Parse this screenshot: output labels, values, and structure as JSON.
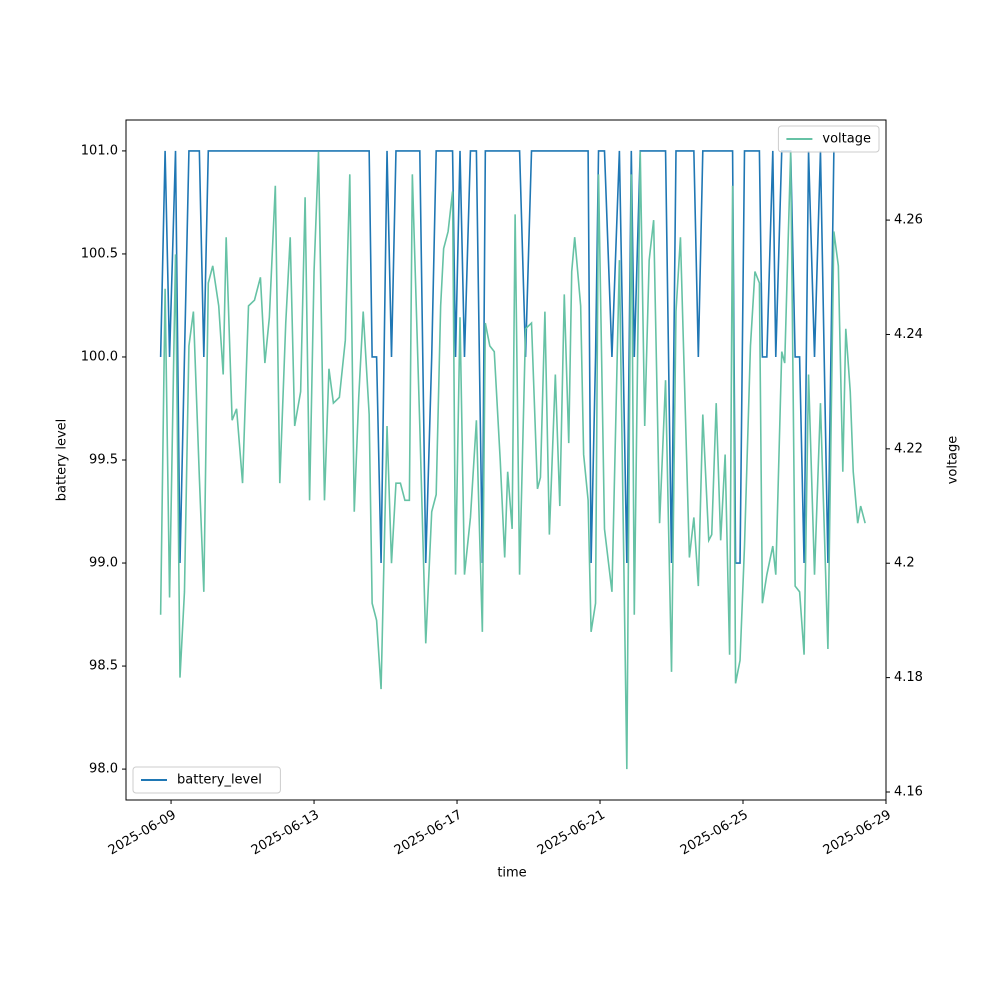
{
  "chart_data": {
    "type": "line",
    "xlabel": "time",
    "ylabel": "battery level",
    "y2label": "voltage",
    "x": [
      "2025-06-08T17:00",
      "2025-06-08T20:00",
      "2025-06-08T23:00",
      "2025-06-09T03:00",
      "2025-06-09T06:00",
      "2025-06-09T09:00",
      "2025-06-09T12:00",
      "2025-06-09T15:00",
      "2025-06-09T19:00",
      "2025-06-09T22:00",
      "2025-06-10T01:00",
      "2025-06-10T04:00",
      "2025-06-10T08:00",
      "2025-06-10T11:00",
      "2025-06-10T13:00",
      "2025-06-10T17:00",
      "2025-06-10T20:00",
      "2025-06-11T00:00",
      "2025-06-11T04:00",
      "2025-06-11T08:00",
      "2025-06-11T12:00",
      "2025-06-11T15:00",
      "2025-06-11T18:00",
      "2025-06-11T22:00",
      "2025-06-12T01:00",
      "2025-06-12T05:00",
      "2025-06-12T08:00",
      "2025-06-12T11:00",
      "2025-06-12T15:00",
      "2025-06-12T18:00",
      "2025-06-12T21:00",
      "2025-06-13T00:00",
      "2025-06-13T03:00",
      "2025-06-13T07:00",
      "2025-06-13T10:00",
      "2025-06-13T13:00",
      "2025-06-13T17:00",
      "2025-06-13T21:00",
      "2025-06-14T00:00",
      "2025-06-14T03:00",
      "2025-06-14T06:00",
      "2025-06-14T09:00",
      "2025-06-14T13:00",
      "2025-06-14T15:00",
      "2025-06-14T18:00",
      "2025-06-14T21:00",
      "2025-06-15T01:00",
      "2025-06-15T04:00",
      "2025-06-15T07:00",
      "2025-06-15T10:00",
      "2025-06-15T13:00",
      "2025-06-15T16:00",
      "2025-06-15T18:00",
      "2025-06-15T23:00",
      "2025-06-16T03:00",
      "2025-06-16T07:00",
      "2025-06-16T10:00",
      "2025-06-16T13:00",
      "2025-06-16T15:00",
      "2025-06-16T18:00",
      "2025-06-16T21:00",
      "2025-06-16T23:00",
      "2025-06-17T02:00",
      "2025-06-17T05:00",
      "2025-06-17T09:00",
      "2025-06-17T13:00",
      "2025-06-17T17:00",
      "2025-06-17T19:00",
      "2025-06-17T22:00",
      "2025-06-18T01:00",
      "2025-06-18T05:00",
      "2025-06-18T08:00",
      "2025-06-18T10:00",
      "2025-06-18T13:00",
      "2025-06-18T15:00",
      "2025-06-18T18:00",
      "2025-06-18T22:00",
      "2025-06-19T02:00",
      "2025-06-19T06:00",
      "2025-06-19T08:00",
      "2025-06-19T11:00",
      "2025-06-19T14:00",
      "2025-06-19T18:00",
      "2025-06-19T21:00",
      "2025-06-20T00:00",
      "2025-06-20T03:00",
      "2025-06-20T05:00",
      "2025-06-20T07:00",
      "2025-06-20T11:00",
      "2025-06-20T13:00",
      "2025-06-20T16:00",
      "2025-06-20T18:00",
      "2025-06-20T21:00",
      "2025-06-20T23:00",
      "2025-06-21T03:00",
      "2025-06-21T08:00",
      "2025-06-21T13:00",
      "2025-06-21T18:00",
      "2025-06-21T21:00",
      "2025-06-21T23:00",
      "2025-06-22T03:00",
      "2025-06-22T06:00",
      "2025-06-22T09:00",
      "2025-06-22T12:00",
      "2025-06-22T16:00",
      "2025-06-22T20:00",
      "2025-06-23T00:00",
      "2025-06-23T03:00",
      "2025-06-23T06:00",
      "2025-06-23T12:00",
      "2025-06-23T15:00",
      "2025-06-23T18:00",
      "2025-06-23T21:00",
      "2025-06-24T01:00",
      "2025-06-24T03:00",
      "2025-06-24T06:00",
      "2025-06-24T09:00",
      "2025-06-24T12:00",
      "2025-06-24T15:00",
      "2025-06-24T17:00",
      "2025-06-24T19:00",
      "2025-06-24T22:00",
      "2025-06-25T01:00",
      "2025-06-25T05:00",
      "2025-06-25T08:00",
      "2025-06-25T11:00",
      "2025-06-25T13:00",
      "2025-06-25T16:00",
      "2025-06-25T20:00",
      "2025-06-25T22:00",
      "2025-06-26T02:00",
      "2025-06-26T04:00",
      "2025-06-26T08:00",
      "2025-06-26T11:00",
      "2025-06-26T14:00",
      "2025-06-26T17:00",
      "2025-06-26T20:00",
      "2025-06-27T00:00",
      "2025-06-27T04:00",
      "2025-06-27T09:00",
      "2025-06-27T13:00",
      "2025-06-27T16:00",
      "2025-06-27T19:00",
      "2025-06-27T21:00",
      "2025-06-28T00:00",
      "2025-06-28T02:00",
      "2025-06-28T05:00",
      "2025-06-28T07:00",
      "2025-06-28T10:00"
    ],
    "series": [
      {
        "name": "battery_level",
        "color": "#1f77b4",
        "axis": "y",
        "legend": "lower left",
        "values": [
          100,
          101,
          100,
          101,
          99,
          100,
          101,
          101,
          101,
          100,
          101,
          101,
          101,
          101,
          101,
          101,
          101,
          101,
          101,
          101,
          101,
          101,
          101,
          101,
          101,
          101,
          101,
          101,
          101,
          101,
          101,
          101,
          101,
          101,
          101,
          101,
          101,
          101,
          101,
          101,
          101,
          101,
          101,
          100,
          100,
          99,
          101,
          100,
          101,
          101,
          101,
          101,
          101,
          101,
          99,
          100,
          101,
          101,
          101,
          101,
          101,
          100,
          101,
          100,
          101,
          101,
          99,
          101,
          101,
          101,
          101,
          101,
          101,
          101,
          101,
          101,
          100,
          101,
          101,
          101,
          101,
          101,
          101,
          101,
          101,
          101,
          101,
          101,
          101,
          101,
          101,
          99,
          100,
          101,
          101,
          100,
          101,
          99,
          101,
          100,
          101,
          101,
          101,
          101,
          101,
          101,
          99,
          101,
          101,
          101,
          101,
          100,
          101,
          101,
          101,
          101,
          101,
          101,
          101,
          101,
          99,
          99,
          101,
          101,
          101,
          101,
          100,
          100,
          101,
          100,
          101,
          101,
          101,
          100,
          100,
          99,
          101,
          100,
          101,
          99,
          101,
          null,
          null,
          null,
          null,
          null,
          null,
          null,
          null
        ]
      },
      {
        "name": "voltage",
        "color": "#66c2a5",
        "axis": "y2",
        "legend": "upper right",
        "values": [
          4.191,
          4.248,
          4.194,
          4.254,
          4.18,
          4.195,
          4.238,
          4.244,
          4.215,
          4.195,
          4.249,
          4.252,
          4.245,
          4.233,
          4.257,
          4.225,
          4.227,
          4.214,
          4.245,
          4.246,
          4.25,
          4.235,
          4.243,
          4.266,
          4.214,
          4.242,
          4.257,
          4.224,
          4.23,
          4.264,
          4.211,
          4.251,
          4.272,
          4.211,
          4.234,
          4.228,
          4.229,
          4.239,
          4.268,
          4.209,
          4.229,
          4.244,
          4.226,
          4.193,
          4.19,
          4.178,
          4.224,
          4.2,
          4.214,
          4.214,
          4.211,
          4.211,
          4.268,
          4.224,
          4.186,
          4.209,
          4.212,
          4.245,
          4.255,
          4.258,
          4.265,
          4.198,
          4.243,
          4.198,
          4.208,
          4.225,
          4.188,
          4.242,
          4.238,
          4.237,
          4.218,
          4.201,
          4.216,
          4.206,
          4.261,
          4.198,
          4.241,
          4.242,
          4.213,
          4.215,
          4.244,
          4.205,
          4.233,
          4.21,
          4.247,
          4.221,
          4.251,
          4.257,
          4.245,
          4.219,
          4.211,
          4.188,
          4.193,
          4.268,
          4.206,
          4.195,
          4.253,
          4.164,
          4.268,
          4.191,
          4.272,
          4.224,
          4.253,
          4.26,
          4.207,
          4.232,
          4.181,
          4.244,
          4.257,
          4.201,
          4.208,
          4.196,
          4.226,
          4.204,
          4.205,
          4.228,
          4.204,
          4.219,
          4.184,
          4.266,
          4.179,
          4.183,
          4.203,
          4.238,
          4.251,
          4.249,
          4.193,
          4.198,
          4.203,
          4.198,
          4.237,
          4.235,
          4.272,
          4.196,
          4.195,
          4.184,
          4.233,
          4.198,
          4.228,
          4.185,
          4.258,
          4.252,
          4.216,
          4.241,
          4.23,
          4.216,
          4.207,
          4.21,
          4.207
        ]
      }
    ],
    "xlim": [
      "2025-06-07T17:45",
      "2025-06-29"
    ],
    "xticks": [
      "2025-06-09",
      "2025-06-13",
      "2025-06-17",
      "2025-06-21",
      "2025-06-25",
      "2025-06-29"
    ],
    "ylim": [
      97.85,
      101.15
    ],
    "yticks": [
      {
        "value": 98,
        "label": "98.0"
      },
      98.5,
      {
        "value": 99,
        "label": "99.0"
      },
      99.5,
      {
        "value": 100,
        "label": "100.0"
      },
      100.5,
      {
        "value": 101,
        "label": "101.0"
      }
    ],
    "y2lim": [
      4.1586,
      4.2775
    ],
    "y2ticks": [
      4.16,
      4.18,
      4.2,
      4.22,
      4.24,
      4.26
    ]
  }
}
